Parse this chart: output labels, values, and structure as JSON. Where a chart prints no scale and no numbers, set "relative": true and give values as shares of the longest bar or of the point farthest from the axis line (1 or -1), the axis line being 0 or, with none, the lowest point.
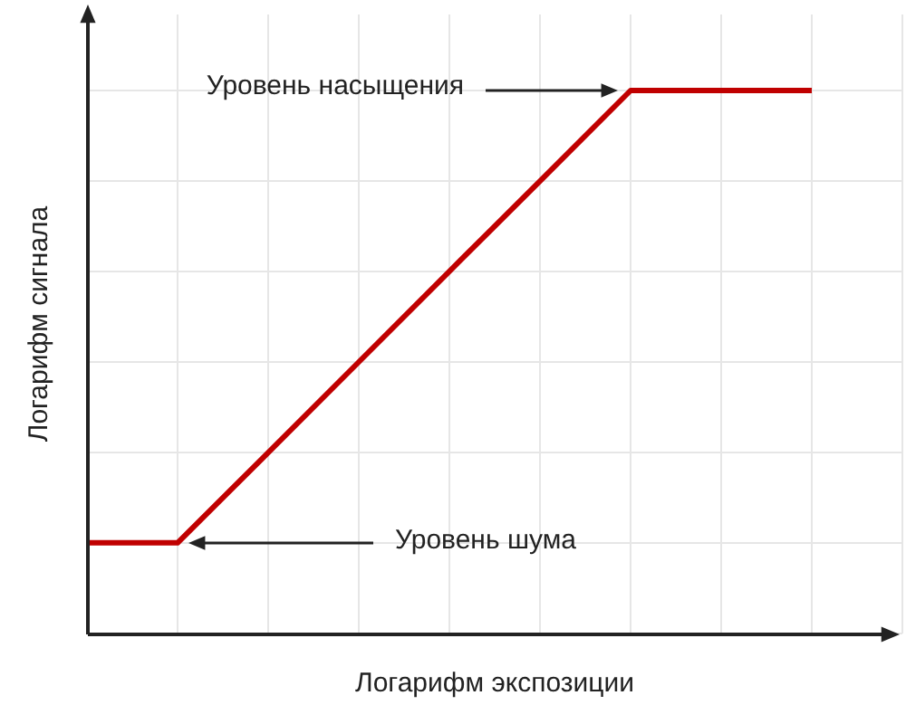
{
  "chart_data": {
    "type": "line",
    "relative": true,
    "xlabel": "Логарифм экспозиции",
    "ylabel": "Логарифм сигнала",
    "categories": [
      null,
      null,
      null,
      null,
      null,
      null,
      null,
      null,
      null
    ],
    "series": [
      {
        "color": "#c00000",
        "values": [
          0.167,
          0.167,
          0.333,
          0.5,
          0.667,
          0.833,
          1,
          1,
          1
        ]
      }
    ],
    "annotations": [
      "Уровень насыщения",
      "Уровень шума"
    ],
    "grid": true,
    "legend": false,
    "marker": "none",
    "line_style": "solid"
  }
}
